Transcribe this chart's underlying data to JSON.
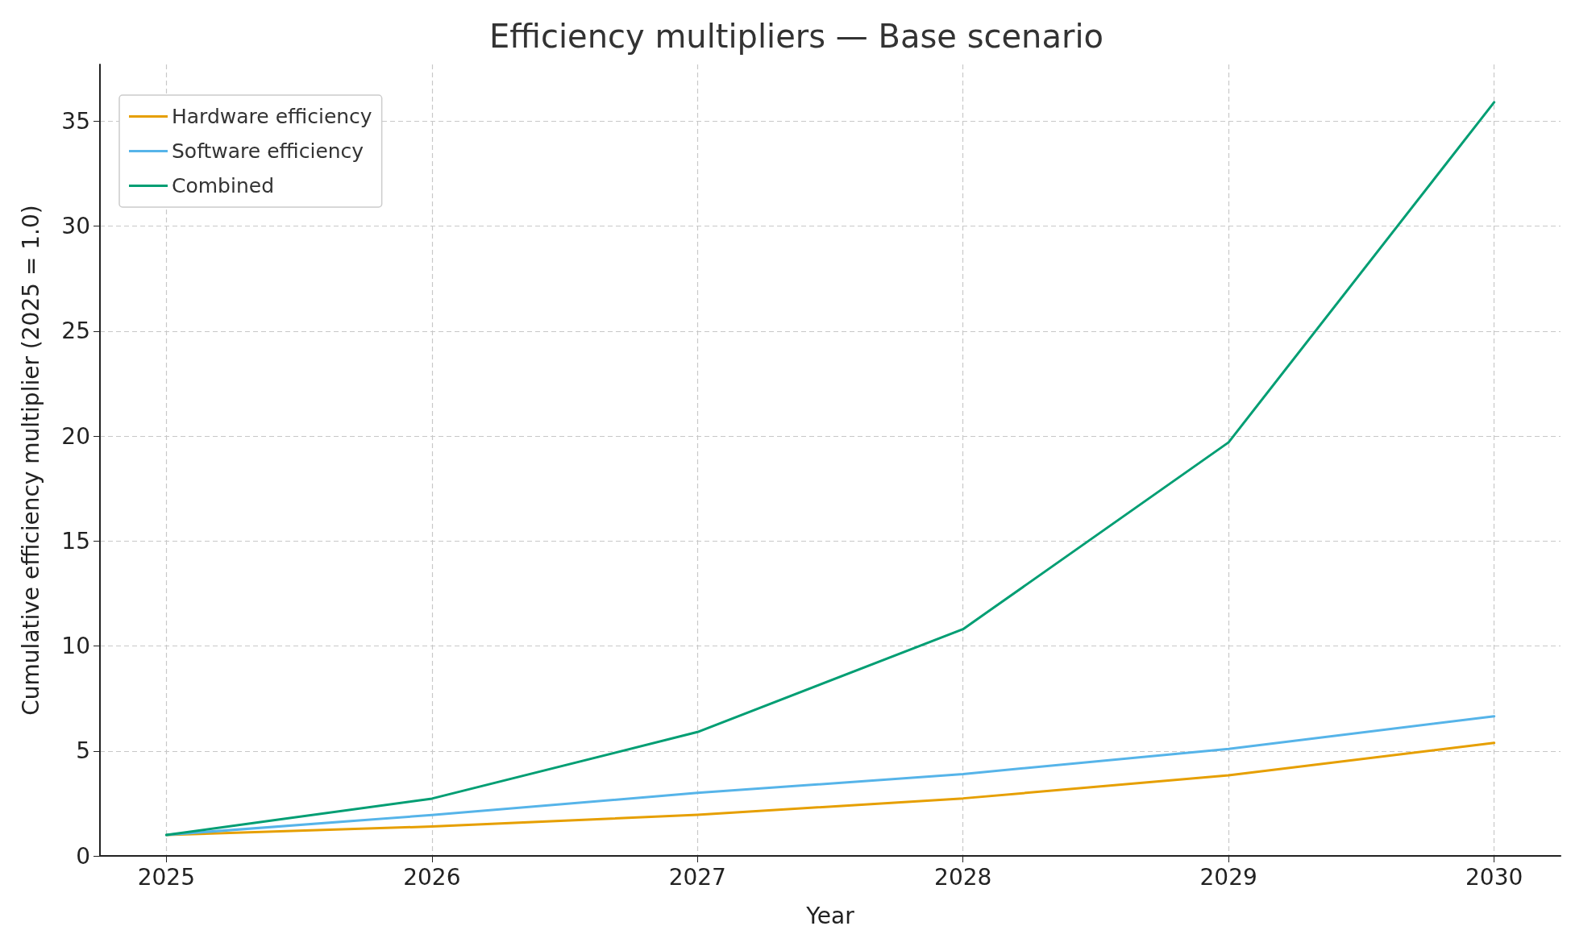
{
  "chart_data": {
    "type": "line",
    "title": "Efficiency multipliers — Base scenario",
    "xlabel": "Year",
    "ylabel": "Cumulative efficiency multiplier (2025 = 1.0)",
    "x": [
      2025,
      2026,
      2027,
      2028,
      2029,
      2030
    ],
    "series": [
      {
        "name": "Hardware efficiency",
        "color": "#e69f00",
        "values": [
          1.0,
          1.4,
          1.96,
          2.74,
          3.84,
          5.38
        ]
      },
      {
        "name": "Software efficiency",
        "color": "#56b4e9",
        "values": [
          1.0,
          1.95,
          3.0,
          3.9,
          5.1,
          6.65
        ]
      },
      {
        "name": "Combined",
        "color": "#009e73",
        "values": [
          1.0,
          2.73,
          5.9,
          10.8,
          19.7,
          35.9
        ]
      }
    ],
    "xlim": [
      2024.75,
      2030.25
    ],
    "xticks": [
      2025,
      2026,
      2027,
      2028,
      2029,
      2030
    ],
    "ylim": [
      0,
      37.7
    ],
    "yticks": [
      0,
      5,
      10,
      15,
      20,
      25,
      30,
      35
    ],
    "grid": true,
    "legend": "top left",
    "marker": "none",
    "line_style": "solid"
  }
}
